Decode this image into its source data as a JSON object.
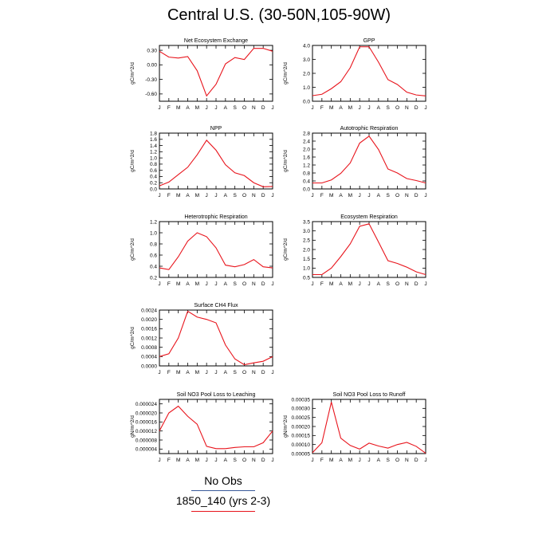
{
  "title": "Central U.S. (30-50N,105-90W)",
  "months": [
    "J",
    "F",
    "M",
    "A",
    "M",
    "J",
    "J",
    "A",
    "S",
    "O",
    "N",
    "D",
    "J"
  ],
  "colors": {
    "series": "#e8141c",
    "obs_line": "#3a5a9a",
    "model_line": "#e8141c",
    "axis": "#000000"
  },
  "legend": {
    "obs_label": "No Obs",
    "model_label": "1850_140 (yrs 2-3)"
  },
  "chart_data": [
    {
      "type": "line",
      "title": "Net Ecosystem Exchange",
      "ylabel": "gC/m^2/d",
      "ylim": [
        -0.75,
        0.4
      ],
      "yticks": [
        0.3,
        0.0,
        -0.3,
        -0.6
      ],
      "yticklabels": [
        "0.30",
        "0.00",
        "-0.30",
        "-0.60"
      ],
      "values": [
        0.28,
        0.16,
        0.14,
        0.17,
        -0.12,
        -0.64,
        -0.4,
        0.02,
        0.15,
        0.11,
        0.34,
        0.34,
        0.28
      ]
    },
    {
      "type": "line",
      "title": "GPP",
      "ylabel": "gC/m^2/d",
      "ylim": [
        0,
        4.0
      ],
      "yticks": [
        0.0,
        1.0,
        2.0,
        3.0,
        4.0
      ],
      "yticklabels": [
        "0.0",
        "1.0",
        "2.0",
        "3.0",
        "4.0"
      ],
      "values": [
        0.4,
        0.5,
        0.9,
        1.4,
        2.4,
        3.9,
        3.9,
        2.8,
        1.55,
        1.2,
        0.65,
        0.45,
        0.38
      ]
    },
    {
      "type": "line",
      "title": "NPP",
      "ylabel": "gC/m^2/d",
      "ylim": [
        0,
        1.8
      ],
      "yticks": [
        0.0,
        0.2,
        0.4,
        0.6,
        0.8,
        1.0,
        1.2,
        1.4,
        1.6,
        1.8
      ],
      "yticklabels": [
        "0.0",
        "0.2",
        "0.4",
        "0.6",
        "0.8",
        "1.0",
        "1.2",
        "1.4",
        "1.6",
        "1.8"
      ],
      "values": [
        0.1,
        0.22,
        0.46,
        0.7,
        1.1,
        1.57,
        1.25,
        0.78,
        0.52,
        0.43,
        0.2,
        0.07,
        0.08
      ]
    },
    {
      "type": "line",
      "title": "Autotrophic Respiration",
      "ylabel": "gC/m^2/d",
      "ylim": [
        0,
        2.8
      ],
      "yticks": [
        0.0,
        0.4,
        0.8,
        1.2,
        1.6,
        2.0,
        2.4,
        2.8
      ],
      "yticklabels": [
        "0.0",
        "0.4",
        "0.8",
        "1.2",
        "1.6",
        "2.0",
        "2.4",
        "2.8"
      ],
      "values": [
        0.3,
        0.3,
        0.45,
        0.78,
        1.3,
        2.3,
        2.65,
        1.98,
        1.0,
        0.8,
        0.52,
        0.42,
        0.3
      ]
    },
    {
      "type": "line",
      "title": "Heterotrophic Respiration",
      "ylabel": "gC/m^2/d",
      "ylim": [
        0.2,
        1.2
      ],
      "yticks": [
        0.2,
        0.4,
        0.6,
        0.8,
        1.0,
        1.2
      ],
      "yticklabels": [
        "0.2",
        "0.4",
        "0.6",
        "0.8",
        "1.0",
        "1.2"
      ],
      "values": [
        0.37,
        0.34,
        0.57,
        0.85,
        1.0,
        0.93,
        0.73,
        0.42,
        0.39,
        0.43,
        0.52,
        0.39,
        0.37
      ]
    },
    {
      "type": "line",
      "title": "Ecosystem Respiration",
      "ylabel": "gC/m^2/d",
      "ylim": [
        0.5,
        3.5
      ],
      "yticks": [
        0.5,
        1.0,
        1.5,
        2.0,
        2.5,
        3.0,
        3.5
      ],
      "yticklabels": [
        "0.5",
        "1.0",
        "1.5",
        "2.0",
        "2.5",
        "3.0",
        "3.5"
      ],
      "values": [
        0.65,
        0.65,
        1.0,
        1.62,
        2.3,
        3.25,
        3.38,
        2.4,
        1.4,
        1.25,
        1.05,
        0.8,
        0.65
      ]
    },
    {
      "type": "line",
      "title": "Surface CH4 Flux",
      "ylabel": "gC/m^2/d",
      "ylim": [
        0,
        0.0024
      ],
      "yticks": [
        0.0,
        0.0004,
        0.0008,
        0.0012,
        0.0016,
        0.002,
        0.0024
      ],
      "yticklabels": [
        "0.0000",
        "0.0004",
        "0.0008",
        "0.0012",
        "0.0016",
        "0.0020",
        "0.0024"
      ],
      "values": [
        0.0004,
        0.00052,
        0.0012,
        0.00235,
        0.0021,
        0.002,
        0.00185,
        0.0009,
        0.0003,
        5e-05,
        0.00013,
        0.0002,
        0.0004
      ]
    },
    {
      "type": "line",
      "title": "Soil NO3 Pool Loss to Leaching",
      "ylabel": "gN/m^2/d",
      "ylim": [
        2e-06,
        2.6e-05
      ],
      "yticks": [
        4e-06,
        8e-06,
        1.2e-05,
        1.6e-05,
        2e-05,
        2.4e-05
      ],
      "yticklabels": [
        "0.000004",
        "0.000008",
        "0.000012",
        "0.000016",
        "0.000020",
        "0.000024"
      ],
      "values": [
        1.2e-05,
        2e-05,
        2.3e-05,
        1.85e-05,
        1.5e-05,
        5.2e-06,
        4.2e-06,
        4.2e-06,
        4.7e-06,
        5e-06,
        5e-06,
        6.8e-06,
        1.2e-05
      ]
    },
    {
      "type": "line",
      "title": "Soil NO3 Pool Loss to Runoff",
      "ylabel": "gN/m^2/d",
      "ylim": [
        5e-05,
        0.00035
      ],
      "yticks": [
        5e-05,
        0.0001,
        0.00015,
        0.0002,
        0.00025,
        0.0003,
        0.00035
      ],
      "yticklabels": [
        "0.00005",
        "0.00010",
        "0.00015",
        "0.00020",
        "0.00025",
        "0.00030",
        "0.00035"
      ],
      "values": [
        5.5e-05,
        0.00011,
        0.000335,
        0.000135,
        9.5e-05,
        7.5e-05,
        0.000108,
        9.2e-05,
        8e-05,
        0.0001,
        0.000112,
        9e-05,
        5.2e-05
      ]
    }
  ]
}
